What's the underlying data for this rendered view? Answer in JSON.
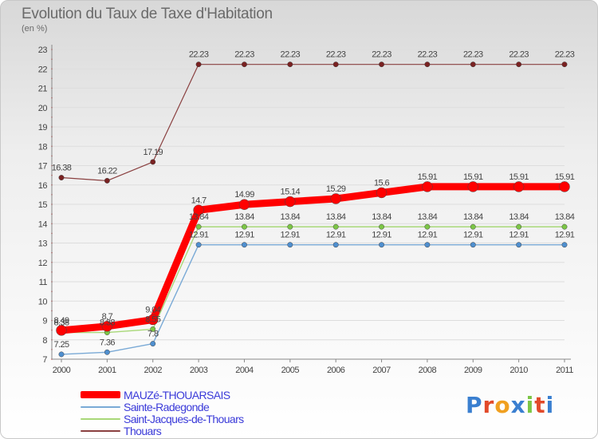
{
  "title": "Evolution du Taux de Taxe d'Habitation",
  "subtitle": "(en %)",
  "logo_text": "Proxiti",
  "chart_data": {
    "type": "line",
    "title": "Evolution du Taux de Taxe d'Habitation",
    "subtitle": "(en %)",
    "xlabel": "",
    "ylabel": "",
    "ylim": [
      7,
      23
    ],
    "yticks": [
      7,
      8,
      9,
      10,
      11,
      12,
      13,
      14,
      15,
      16,
      17,
      18,
      19,
      20,
      21,
      22,
      23
    ],
    "x": [
      "2000",
      "2001",
      "2002",
      "2003",
      "2004",
      "2005",
      "2006",
      "2007",
      "2008",
      "2009",
      "2010",
      "2011"
    ],
    "grid": "horizontal",
    "legend_position": "bottom-left",
    "series": [
      {
        "name": "MAUZé-THOUARSAIS",
        "color": "#ff0000",
        "values": [
          8.49,
          8.7,
          9.04,
          14.7,
          14.99,
          15.14,
          15.29,
          15.6,
          15.91,
          15.91,
          15.91,
          15.91
        ],
        "labels": [
          "8.49",
          "8.7",
          "9.04",
          "14.7",
          "14.99",
          "15.14",
          "15.29",
          "15.6",
          "15.91",
          "15.91",
          "15.91",
          "15.91"
        ]
      },
      {
        "name": "Sainte-Radegonde",
        "color": "#5b9bd5",
        "values": [
          7.25,
          7.36,
          7.8,
          12.91,
          12.91,
          12.91,
          12.91,
          12.91,
          12.91,
          12.91,
          12.91,
          12.91
        ],
        "labels": [
          "7.25",
          "7.36",
          "7.8",
          "12.91",
          "12.91",
          "12.91",
          "12.91",
          "12.91",
          "12.91",
          "12.91",
          "12.91",
          "12.91"
        ]
      },
      {
        "name": "Saint-Jacques-de-Thouars",
        "color": "#92d050",
        "values": [
          8.38,
          8.38,
          8.55,
          13.84,
          13.84,
          13.84,
          13.84,
          13.84,
          13.84,
          13.84,
          13.84,
          13.84
        ],
        "labels": [
          "8.38",
          "8.38",
          "8.55",
          "13.84",
          "13.84",
          "13.84",
          "13.84",
          "13.84",
          "13.84",
          "13.84",
          "13.84",
          "13.84"
        ]
      },
      {
        "name": "Thouars",
        "color": "#7f2f2f",
        "values": [
          16.38,
          16.22,
          17.19,
          22.23,
          22.23,
          22.23,
          22.23,
          22.23,
          22.23,
          22.23,
          22.23,
          22.23
        ],
        "labels": [
          "16.38",
          "16.22",
          "17.19",
          "22.23",
          "22.23",
          "22.23",
          "22.23",
          "22.23",
          "22.23",
          "22.23",
          "22.23",
          "22.23"
        ]
      }
    ]
  }
}
